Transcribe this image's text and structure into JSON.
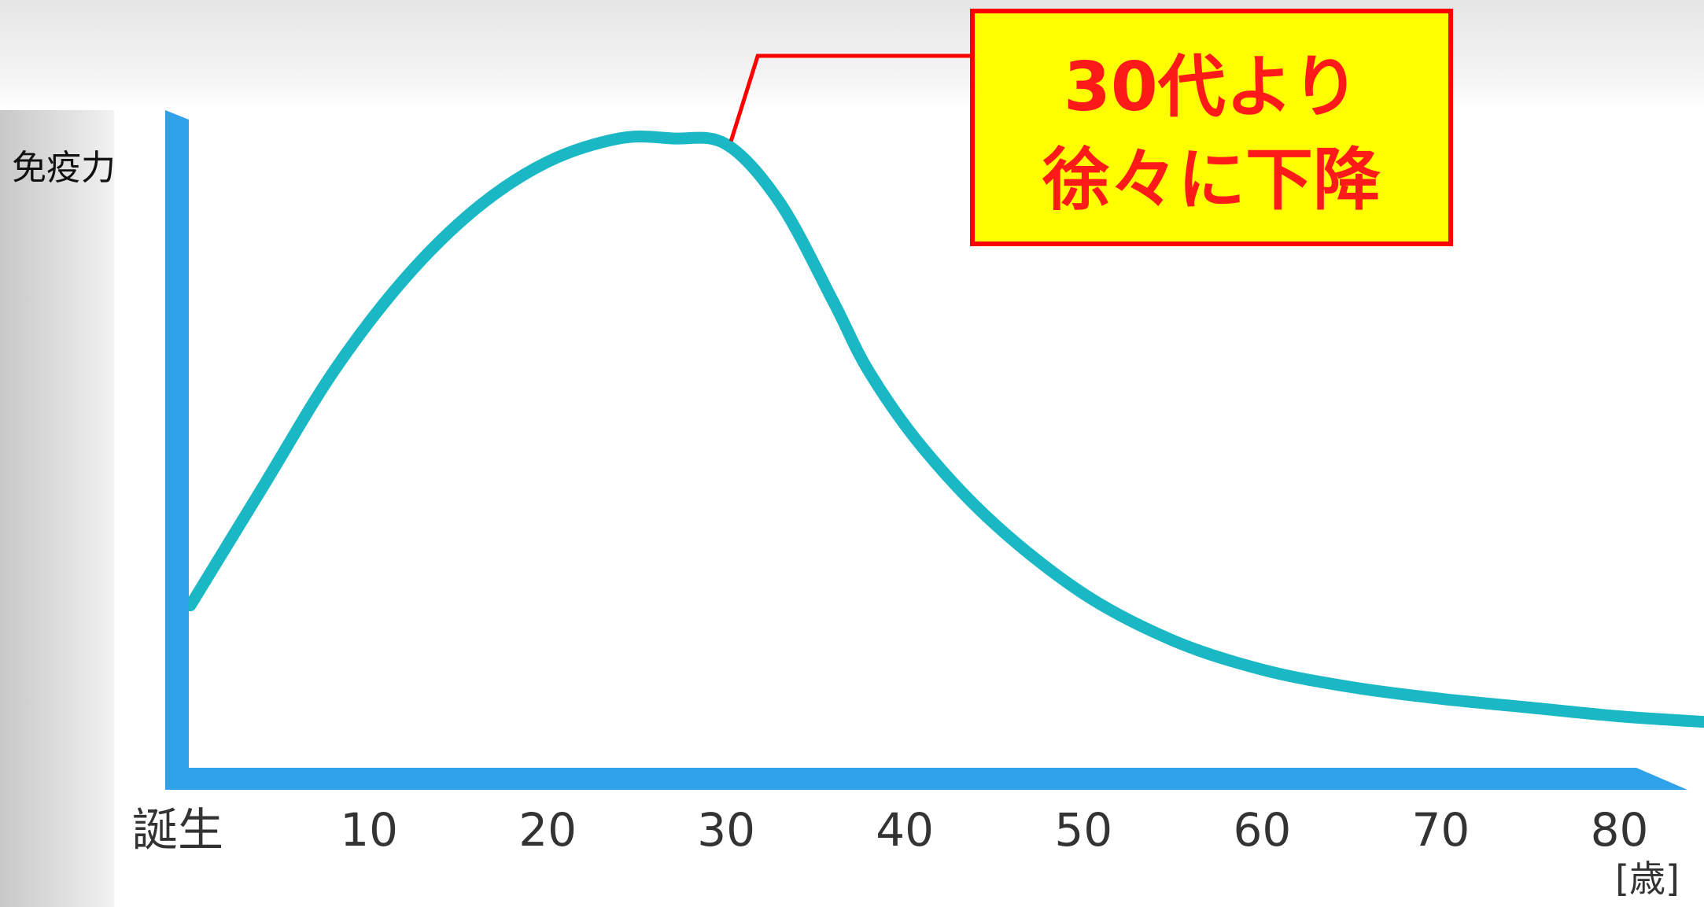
{
  "chart_data": {
    "type": "line",
    "ylabel": "免疫力",
    "xlabel": "",
    "x_unit": "[歳]",
    "x_tick_labels": [
      "誕生",
      "10",
      "20",
      "30",
      "40",
      "50",
      "60",
      "70",
      "80"
    ],
    "x_ticks": [
      0,
      10,
      20,
      30,
      40,
      50,
      60,
      70,
      80
    ],
    "xlim": [
      0,
      85
    ],
    "ylim": [
      0,
      100
    ],
    "y_ticks_shown": false,
    "grid": false,
    "series": [
      {
        "color": "#1ab8c4",
        "x": [
          0,
          4,
          8,
          12,
          16,
          20,
          24,
          27,
          30,
          33,
          36,
          38,
          41,
          45,
          50,
          55,
          60,
          65,
          70,
          75,
          80,
          85
        ],
        "y": [
          20,
          40,
          60,
          76,
          88,
          96,
          100,
          100,
          99,
          89,
          72,
          60,
          47,
          34,
          22,
          14,
          9,
          6,
          4,
          2.5,
          1,
          0
        ]
      }
    ],
    "annotation": {
      "lines": [
        "30代より",
        "徐々に下降"
      ],
      "points_to_x": 30,
      "text_color": "#ff1a1a",
      "box_fill": "#ffff00",
      "box_border": "#ff0000"
    },
    "colors": {
      "axis": "#2fa2ea",
      "curve": "#1ab8c4"
    }
  }
}
